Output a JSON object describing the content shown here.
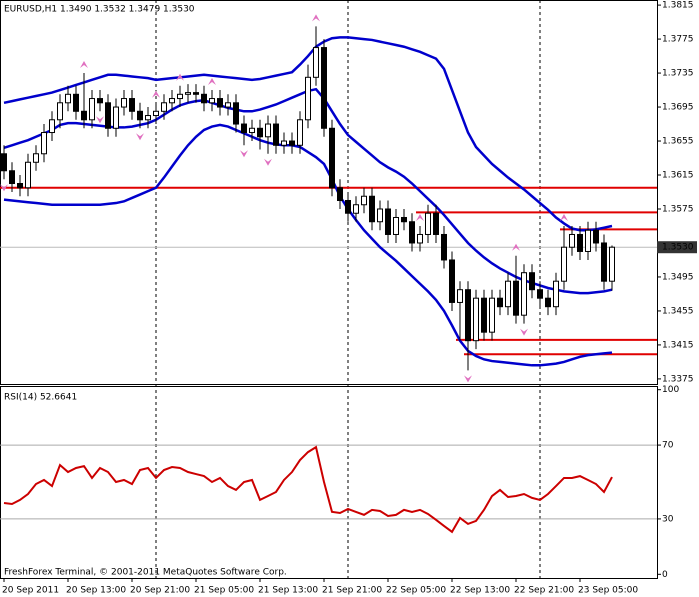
{
  "footer": "FreshForex Terminal, © 2001-2011 MetaQuotes Software Corp.",
  "chart_data": [
    {
      "type": "candlestick",
      "title": "EURUSD,H1 1.3490 1.3532 1.3479 1.3530",
      "categories": [
        "20 Sep 2011",
        null,
        null,
        null,
        null,
        null,
        null,
        null,
        "20 Sep 13:00",
        null,
        null,
        null,
        null,
        null,
        null,
        null,
        "20 Sep 21:00",
        null,
        null,
        null,
        null,
        null,
        null,
        null,
        "21 Sep 05:00",
        null,
        null,
        null,
        null,
        null,
        null,
        null,
        "21 Sep 13:00",
        null,
        null,
        null,
        null,
        null,
        null,
        null,
        "21 Sep 21:00",
        null,
        null,
        null,
        null,
        null,
        null,
        null,
        "22 Sep 05:00",
        null,
        null,
        null,
        null,
        null,
        null,
        null,
        "22 Sep 13:00",
        null,
        null,
        null,
        null,
        null,
        null,
        null,
        "22 Sep 21:00",
        null,
        null,
        null,
        null,
        null,
        null,
        null,
        "23 Sep 05:00",
        null,
        null,
        null,
        null
      ],
      "open": [
        1.364,
        1.362,
        1.3605,
        1.36,
        1.363,
        1.364,
        1.3665,
        1.368,
        1.37,
        1.371,
        1.369,
        1.368,
        1.3705,
        1.37,
        1.367,
        1.3695,
        1.3705,
        1.369,
        1.368,
        1.3685,
        1.369,
        1.37,
        1.3705,
        1.371,
        1.3712,
        1.371,
        1.37,
        1.3705,
        1.3695,
        1.37,
        1.3675,
        1.3665,
        1.367,
        1.366,
        1.3675,
        1.365,
        1.3655,
        1.365,
        1.368,
        1.373,
        1.3765,
        1.367,
        1.36,
        1.3585,
        1.357,
        1.358,
        1.359,
        1.356,
        1.3575,
        1.3545,
        1.3565,
        1.356,
        1.3535,
        1.3545,
        1.357,
        1.3545,
        1.3515,
        1.3465,
        1.348,
        1.342,
        1.347,
        1.343,
        1.347,
        1.346,
        1.349,
        1.345,
        1.35,
        1.348,
        1.347,
        1.346,
        1.349,
        1.353,
        1.3545,
        1.3525,
        1.355,
        1.3535,
        1.349
      ],
      "high": [
        1.365,
        1.363,
        1.3615,
        1.364,
        1.365,
        1.3675,
        1.369,
        1.371,
        1.372,
        1.372,
        1.3735,
        1.3715,
        1.3715,
        1.371,
        1.3705,
        1.3715,
        1.3715,
        1.37,
        1.3695,
        1.37,
        1.371,
        1.3715,
        1.372,
        1.3722,
        1.3722,
        1.372,
        1.3715,
        1.3715,
        1.371,
        1.371,
        1.3685,
        1.368,
        1.368,
        1.3685,
        1.3685,
        1.3665,
        1.3665,
        1.369,
        1.3745,
        1.379,
        1.3775,
        1.368,
        1.361,
        1.3595,
        1.359,
        1.36,
        1.36,
        1.3585,
        1.3585,
        1.3575,
        1.3575,
        1.357,
        1.3555,
        1.358,
        1.358,
        1.3555,
        1.3525,
        1.349,
        1.349,
        1.348,
        1.348,
        1.348,
        1.348,
        1.35,
        1.352,
        1.351,
        1.351,
        1.349,
        1.348,
        1.35,
        1.3555,
        1.3555,
        1.3555,
        1.356,
        1.356,
        1.3545,
        1.3532
      ],
      "low": [
        1.361,
        1.3595,
        1.359,
        1.359,
        1.362,
        1.363,
        1.3655,
        1.367,
        1.369,
        1.368,
        1.367,
        1.367,
        1.369,
        1.366,
        1.366,
        1.3685,
        1.368,
        1.367,
        1.367,
        1.3675,
        1.368,
        1.369,
        1.3695,
        1.37,
        1.37,
        1.369,
        1.369,
        1.3685,
        1.3685,
        1.3665,
        1.365,
        1.3655,
        1.3645,
        1.364,
        1.364,
        1.364,
        1.364,
        1.364,
        1.367,
        1.372,
        1.366,
        1.359,
        1.3575,
        1.356,
        1.356,
        1.357,
        1.355,
        1.355,
        1.3535,
        1.3535,
        1.355,
        1.3525,
        1.3525,
        1.3535,
        1.3535,
        1.3505,
        1.3455,
        1.342,
        1.3385,
        1.341,
        1.342,
        1.342,
        1.345,
        1.345,
        1.344,
        1.344,
        1.347,
        1.346,
        1.345,
        1.345,
        1.348,
        1.352,
        1.3515,
        1.3515,
        1.3525,
        1.348,
        1.3479
      ],
      "close": [
        1.362,
        1.3605,
        1.36,
        1.363,
        1.364,
        1.3665,
        1.368,
        1.37,
        1.371,
        1.369,
        1.368,
        1.3705,
        1.37,
        1.367,
        1.3695,
        1.3705,
        1.369,
        1.368,
        1.3685,
        1.369,
        1.37,
        1.3705,
        1.371,
        1.3712,
        1.371,
        1.37,
        1.3705,
        1.3695,
        1.37,
        1.3675,
        1.3665,
        1.367,
        1.366,
        1.3675,
        1.365,
        1.3655,
        1.365,
        1.368,
        1.373,
        1.3765,
        1.367,
        1.36,
        1.3585,
        1.357,
        1.358,
        1.359,
        1.356,
        1.3575,
        1.3545,
        1.3565,
        1.356,
        1.3535,
        1.3545,
        1.357,
        1.3545,
        1.3515,
        1.3465,
        1.348,
        1.342,
        1.347,
        1.343,
        1.347,
        1.346,
        1.349,
        1.345,
        1.35,
        1.348,
        1.347,
        1.346,
        1.349,
        1.353,
        1.3545,
        1.3525,
        1.355,
        1.3535,
        1.349,
        1.353
      ],
      "series": [
        {
          "color": "#0000cc",
          "values": [
            1.37,
            1.3702,
            1.3704,
            1.3706,
            1.3708,
            1.371,
            1.3712,
            1.3715,
            1.3718,
            1.3721,
            1.3724,
            1.3727,
            1.373,
            1.3733,
            1.3733,
            1.3732,
            1.3731,
            1.373,
            1.3729,
            1.3727,
            1.3728,
            1.3729,
            1.373,
            1.3731,
            1.3732,
            1.3733,
            1.3732,
            1.3731,
            1.373,
            1.3729,
            1.3728,
            1.3727,
            1.3728,
            1.373,
            1.3732,
            1.3734,
            1.3736,
            1.3745,
            1.3755,
            1.3766,
            1.3772,
            1.3776,
            1.3777,
            1.3777,
            1.3776,
            1.3775,
            1.3774,
            1.3772,
            1.377,
            1.3768,
            1.3766,
            1.3763,
            1.376,
            1.3756,
            1.3752,
            1.374,
            1.3715,
            1.369,
            1.3665,
            1.3648,
            1.3638,
            1.3628,
            1.362,
            1.3612,
            1.3605,
            1.3598,
            1.359,
            1.3582,
            1.3574,
            1.3565,
            1.3558,
            1.3552,
            1.355,
            1.355,
            1.3551,
            1.3553,
            1.3555
          ]
        },
        {
          "color": "#0000cc",
          "values": [
            1.3647,
            1.365,
            1.3653,
            1.3656,
            1.366,
            1.3664,
            1.3668,
            1.3674,
            1.3676,
            1.3676,
            1.3675,
            1.3674,
            1.3673,
            1.3672,
            1.3671,
            1.3671,
            1.3672,
            1.3674,
            1.3676,
            1.368,
            1.3686,
            1.3692,
            1.3697,
            1.37,
            1.3702,
            1.3703,
            1.37,
            1.3697,
            1.3694,
            1.3692,
            1.369,
            1.369,
            1.3692,
            1.3695,
            1.3698,
            1.3702,
            1.3706,
            1.371,
            1.3714,
            1.3716,
            1.3705,
            1.369,
            1.3675,
            1.3662,
            1.3654,
            1.3646,
            1.3638,
            1.363,
            1.3624,
            1.3619,
            1.3613,
            1.3605,
            1.3596,
            1.3587,
            1.3578,
            1.3568,
            1.3557,
            1.3546,
            1.3535,
            1.3526,
            1.3518,
            1.3511,
            1.3505,
            1.35,
            1.3495,
            1.3491,
            1.3488,
            1.3485,
            1.3482,
            1.348,
            1.3478,
            1.3477,
            1.3476,
            1.3476,
            1.3477,
            1.3478,
            1.348
          ]
        },
        {
          "color": "#0000cc",
          "values": [
            1.3586,
            1.3585,
            1.3584,
            1.3583,
            1.3582,
            1.3581,
            1.358,
            1.358,
            1.358,
            1.358,
            1.358,
            1.358,
            1.358,
            1.3581,
            1.3582,
            1.3584,
            1.3588,
            1.3592,
            1.3596,
            1.36,
            1.3612,
            1.3625,
            1.3638,
            1.365,
            1.366,
            1.3668,
            1.3672,
            1.3674,
            1.3672,
            1.3668,
            1.3664,
            1.366,
            1.3656,
            1.3653,
            1.3651,
            1.365,
            1.365,
            1.3648,
            1.3642,
            1.3636,
            1.3628,
            1.361,
            1.359,
            1.3575,
            1.3562,
            1.355,
            1.354,
            1.353,
            1.3522,
            1.3514,
            1.3505,
            1.3496,
            1.3487,
            1.3478,
            1.3468,
            1.3455,
            1.3438,
            1.342,
            1.3408,
            1.3402,
            1.3398,
            1.3396,
            1.3395,
            1.3394,
            1.3393,
            1.3392,
            1.3391,
            1.3391,
            1.3392,
            1.3393,
            1.3395,
            1.3398,
            1.3401,
            1.3403,
            1.3404,
            1.3405,
            1.3406
          ]
        }
      ],
      "levels": [
        {
          "value": 1.36,
          "from": 0
        },
        {
          "value": 1.3571,
          "from": 52
        },
        {
          "value": 1.3551,
          "from": 70
        },
        {
          "value": 1.3421,
          "from": 57
        },
        {
          "value": 1.3404,
          "from": 58
        }
      ],
      "level_color": "#e00000",
      "fractals_up": [
        10,
        19,
        22,
        26,
        39,
        52,
        64,
        70
      ],
      "fractals_down": [
        0,
        12,
        17,
        30,
        33,
        58,
        65
      ],
      "fractal_color": "#e070c0",
      "period_separators": [
        19,
        43,
        67
      ],
      "current_price": {
        "value": 1.353,
        "label": "1.3530"
      },
      "ylim": [
        1.3369,
        1.3821
      ],
      "yticks": [
        1.3815,
        1.3775,
        1.3735,
        1.3695,
        1.3655,
        1.3615,
        1.3575,
        1.3495,
        1.3455,
        1.3415,
        1.3375
      ]
    },
    {
      "type": "line",
      "title": "RSI(14) 52.6641",
      "color": "#cc0000",
      "values": [
        38.6,
        38.1,
        40.3,
        43.5,
        48.9,
        51.1,
        47.8,
        59.2,
        55.4,
        57.6,
        58.6,
        52.2,
        57.6,
        55.4,
        50.0,
        51.1,
        48.9,
        56.5,
        57.6,
        52.2,
        56.5,
        58.1,
        57.6,
        55.4,
        54.3,
        53.2,
        50.0,
        52.2,
        47.8,
        45.7,
        50.0,
        51.1,
        40.3,
        42.4,
        44.6,
        51.1,
        55.4,
        61.9,
        66.2,
        68.9,
        50.0,
        33.8,
        33.2,
        35.4,
        33.8,
        32.2,
        34.9,
        34.3,
        31.6,
        32.2,
        34.9,
        33.8,
        34.9,
        32.7,
        29.5,
        26.2,
        23.0,
        30.5,
        27.3,
        28.9,
        34.9,
        42.4,
        45.7,
        41.9,
        42.4,
        43.5,
        41.4,
        40.3,
        43.5,
        47.8,
        52.2,
        52.2,
        53.2,
        51.1,
        48.9,
        44.6,
        52.6641
      ],
      "levels": [
        70,
        30
      ],
      "ylim": [
        -2,
        102
      ],
      "yticks": [
        100,
        70,
        30,
        0
      ]
    }
  ]
}
